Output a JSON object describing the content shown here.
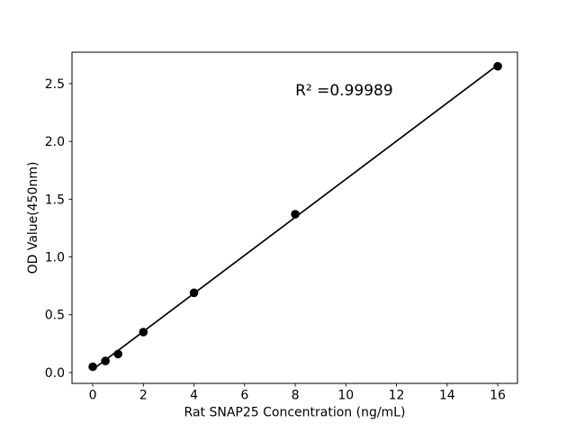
{
  "chart_data": {
    "type": "scatter",
    "title": "",
    "xlabel": "Rat SNAP25 Concentration (ng/mL)",
    "ylabel": "OD Value(450nm)",
    "points": {
      "x": [
        0,
        0.5,
        1,
        2,
        4,
        8,
        16
      ],
      "y": [
        0.05,
        0.1,
        0.16,
        0.35,
        0.69,
        1.37,
        2.65
      ]
    },
    "fit_line": {
      "type": "linear",
      "x_start": 0,
      "x_end": 16
    },
    "annotation": {
      "text": "R² =0.99989",
      "x": 8,
      "y": 2.4
    },
    "r_squared": 0.99989,
    "xlim": [
      -0.82,
      16.78
    ],
    "ylim": [
      -0.094,
      2.772
    ],
    "x_ticks": [
      0,
      2,
      4,
      6,
      8,
      10,
      12,
      14,
      16
    ],
    "x_tick_labels": [
      "0",
      "2",
      "4",
      "6",
      "8",
      "10",
      "12",
      "14",
      "16"
    ],
    "y_ticks": [
      0.0,
      0.5,
      1.0,
      1.5,
      2.0,
      2.5
    ],
    "y_tick_labels": [
      "0.0",
      "0.5",
      "1.0",
      "1.5",
      "2.0",
      "2.5"
    ],
    "grid": false,
    "legend": "none",
    "colors": {
      "background": "#ffffff",
      "axis": "#000000",
      "marker": "#000000",
      "line": "#000000",
      "text": "#000000"
    }
  }
}
